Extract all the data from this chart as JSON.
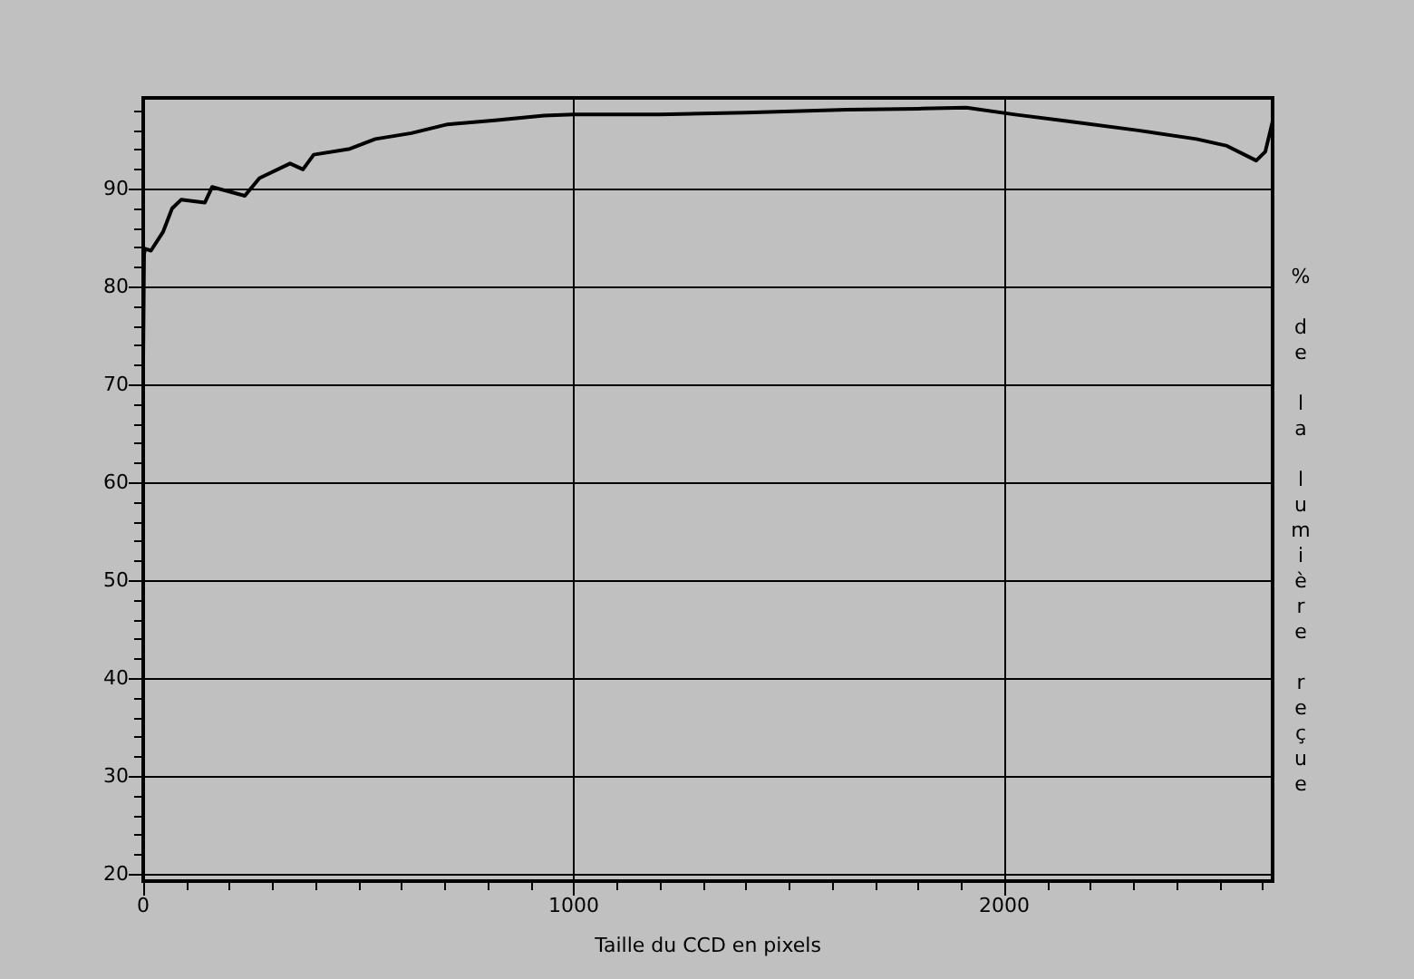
{
  "chart_data": {
    "type": "line",
    "xlabel": "Taille du CCD en pixels",
    "ylabel": "% de la lumière reçue",
    "x": [
      0,
      2,
      4,
      18,
      46,
      67,
      88,
      143,
      160,
      236,
      270,
      341,
      371,
      396,
      480,
      539,
      623,
      707,
      817,
      931,
      1000,
      1200,
      1400,
      1634,
      1800,
      1912,
      2025,
      2152,
      2307,
      2446,
      2517,
      2585,
      2606,
      2623
    ],
    "series": [
      {
        "color": "#000000",
        "values": [
          72.8,
          83.3,
          83.9,
          83.7,
          85.6,
          88,
          88.9,
          88.6,
          90.2,
          89.3,
          91.1,
          92.6,
          92,
          93.5,
          94.1,
          95.1,
          95.7,
          96.6,
          97,
          97.5,
          97.6,
          97.6,
          97.8,
          98.1,
          98.2,
          98.3,
          97.6,
          96.9,
          96,
          95.1,
          94.4,
          92.9,
          93.8,
          96.9
        ]
      }
    ],
    "xlim": [
      0,
      2623
    ],
    "ylim": [
      19.3,
      99.3
    ],
    "xticks": [
      0,
      {
        "value": 100,
        "label": null
      },
      {
        "value": 200,
        "label": null
      },
      {
        "value": 300,
        "label": null
      },
      {
        "value": 400,
        "label": null
      },
      {
        "value": 500,
        "label": null
      },
      {
        "value": 600,
        "label": null
      },
      {
        "value": 700,
        "label": null
      },
      {
        "value": 800,
        "label": null
      },
      {
        "value": 900,
        "label": null
      },
      1000,
      {
        "value": 1100,
        "label": null
      },
      {
        "value": 1200,
        "label": null
      },
      {
        "value": 1300,
        "label": null
      },
      {
        "value": 1400,
        "label": null
      },
      {
        "value": 1500,
        "label": null
      },
      {
        "value": 1600,
        "label": null
      },
      {
        "value": 1700,
        "label": null
      },
      {
        "value": 1800,
        "label": null
      },
      {
        "value": 1900,
        "label": null
      },
      2000,
      {
        "value": 2100,
        "label": null
      },
      {
        "value": 2200,
        "label": null
      },
      {
        "value": 2300,
        "label": null
      },
      {
        "value": 2400,
        "label": null
      },
      {
        "value": 2500,
        "label": null
      },
      {
        "value": 2600,
        "label": null
      }
    ],
    "yticks": [
      20,
      {
        "value": 22,
        "label": null
      },
      {
        "value": 24,
        "label": null
      },
      {
        "value": 26,
        "label": null
      },
      {
        "value": 28,
        "label": null
      },
      30,
      {
        "value": 32,
        "label": null
      },
      {
        "value": 34,
        "label": null
      },
      {
        "value": 36,
        "label": null
      },
      {
        "value": 38,
        "label": null
      },
      40,
      {
        "value": 42,
        "label": null
      },
      {
        "value": 44,
        "label": null
      },
      {
        "value": 46,
        "label": null
      },
      {
        "value": 48,
        "label": null
      },
      50,
      {
        "value": 52,
        "label": null
      },
      {
        "value": 54,
        "label": null
      },
      {
        "value": 56,
        "label": null
      },
      {
        "value": 58,
        "label": null
      },
      60,
      {
        "value": 62,
        "label": null
      },
      {
        "value": 64,
        "label": null
      },
      {
        "value": 66,
        "label": null
      },
      {
        "value": 68,
        "label": null
      },
      70,
      {
        "value": 72,
        "label": null
      },
      {
        "value": 74,
        "label": null
      },
      {
        "value": 76,
        "label": null
      },
      {
        "value": 78,
        "label": null
      },
      80,
      {
        "value": 82,
        "label": null
      },
      {
        "value": 84,
        "label": null
      },
      {
        "value": 86,
        "label": null
      },
      {
        "value": 88,
        "label": null
      },
      90,
      {
        "value": 92,
        "label": null
      },
      {
        "value": 94,
        "label": null
      },
      {
        "value": 96,
        "label": null
      },
      {
        "value": 98,
        "label": null
      }
    ],
    "grid": true,
    "marker": "none",
    "line_style": "solid"
  }
}
